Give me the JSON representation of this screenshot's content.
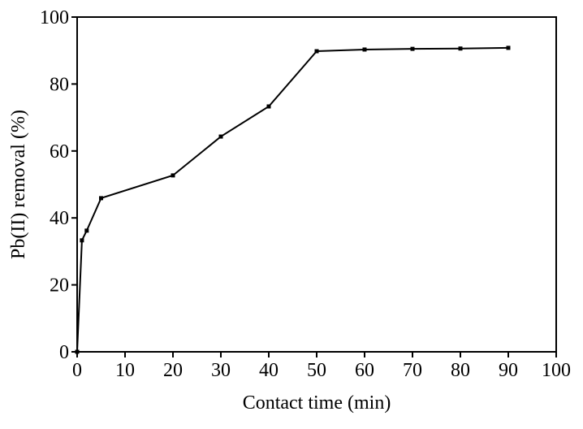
{
  "chart_data": {
    "type": "line",
    "x_label": "Contact time (min)",
    "y_label": "Pb(II) removal (%)",
    "x": [
      0,
      1,
      2,
      5,
      20,
      30,
      40,
      50,
      60,
      70,
      80,
      90
    ],
    "series": [
      {
        "name": "Pb(II) removal",
        "color": "#000000",
        "values": [
          0,
          33.3,
          36.2,
          45.9,
          52.7,
          64.3,
          73.3,
          89.8,
          90.3,
          90.5,
          90.6,
          90.8
        ]
      }
    ],
    "xlim": [
      0,
      100
    ],
    "xticks": [
      0,
      10,
      20,
      30,
      40,
      50,
      60,
      70,
      80,
      90,
      100
    ],
    "ylim": [
      0,
      100
    ],
    "yticks": [
      0,
      20,
      40,
      60,
      80,
      100
    ],
    "grid": false,
    "legend": false
  }
}
